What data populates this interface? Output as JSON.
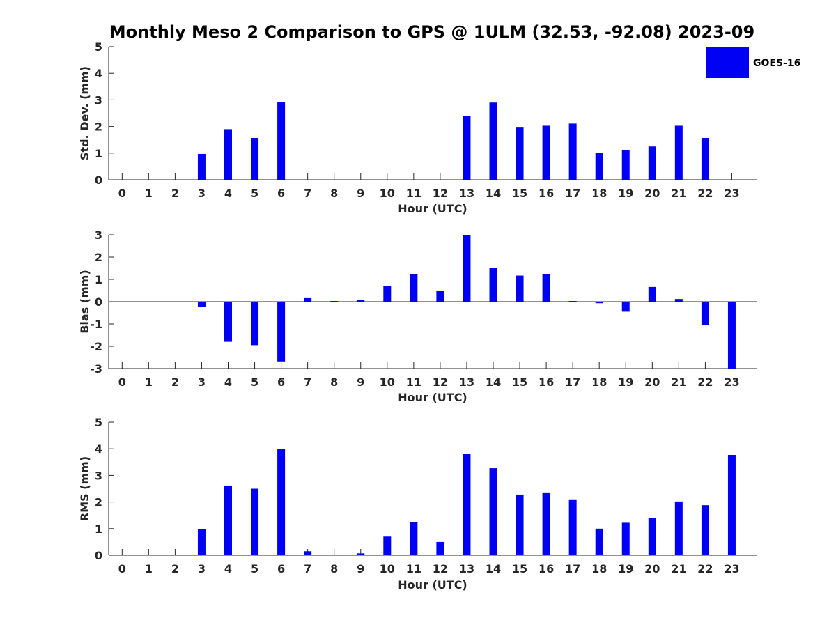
{
  "title": "Monthly Meso 2 Comparison to GPS @ 1ULM (32.53, -92.08) 2023-09",
  "legend": {
    "label": "GOES-16",
    "color": "#0000f5"
  },
  "chart_data": [
    {
      "type": "bar",
      "name": "std-dev",
      "xlabel": "Hour (UTC)",
      "ylabel": "Std. Dev. (mm)",
      "categories": [
        "0",
        "1",
        "2",
        "3",
        "4",
        "5",
        "6",
        "7",
        "8",
        "9",
        "10",
        "11",
        "12",
        "13",
        "14",
        "15",
        "16",
        "17",
        "18",
        "19",
        "20",
        "21",
        "22",
        "23"
      ],
      "values": [
        null,
        null,
        null,
        0.97,
        1.9,
        1.57,
        2.92,
        null,
        null,
        null,
        null,
        null,
        null,
        2.4,
        2.9,
        1.96,
        2.03,
        2.11,
        1.02,
        1.12,
        1.25,
        2.03,
        1.57,
        null
      ],
      "ylim": [
        0,
        5
      ],
      "yticks": [
        0,
        1,
        2,
        3,
        4,
        5
      ]
    },
    {
      "type": "bar",
      "name": "bias",
      "xlabel": "Hour (UTC)",
      "ylabel": "Bias (mm)",
      "categories": [
        "0",
        "1",
        "2",
        "3",
        "4",
        "5",
        "6",
        "7",
        "8",
        "9",
        "10",
        "11",
        "12",
        "13",
        "14",
        "15",
        "16",
        "17",
        "18",
        "19",
        "20",
        "21",
        "22",
        "23"
      ],
      "values": [
        null,
        null,
        null,
        -0.22,
        -1.8,
        -1.95,
        -2.68,
        0.16,
        0.03,
        0.07,
        0.7,
        1.25,
        0.5,
        2.97,
        1.53,
        1.17,
        1.22,
        0.03,
        -0.07,
        -0.45,
        0.66,
        0.12,
        -1.05,
        -3.0
      ],
      "ylim": [
        -3,
        3
      ],
      "yticks": [
        -3,
        -2,
        -1,
        0,
        1,
        2,
        3
      ]
    },
    {
      "type": "bar",
      "name": "rms",
      "xlabel": "Hour (UTC)",
      "ylabel": "RMS (mm)",
      "categories": [
        "0",
        "1",
        "2",
        "3",
        "4",
        "5",
        "6",
        "7",
        "8",
        "9",
        "10",
        "11",
        "12",
        "13",
        "14",
        "15",
        "16",
        "17",
        "18",
        "19",
        "20",
        "21",
        "22",
        "23"
      ],
      "values": [
        null,
        null,
        null,
        0.98,
        2.62,
        2.5,
        3.98,
        0.15,
        null,
        0.07,
        0.7,
        1.25,
        0.5,
        3.82,
        3.27,
        2.28,
        2.36,
        2.1,
        1.0,
        1.22,
        1.4,
        2.02,
        1.88,
        3.77
      ],
      "ylim": [
        0,
        5
      ],
      "yticks": [
        0,
        1,
        2,
        3,
        4,
        5
      ]
    }
  ]
}
